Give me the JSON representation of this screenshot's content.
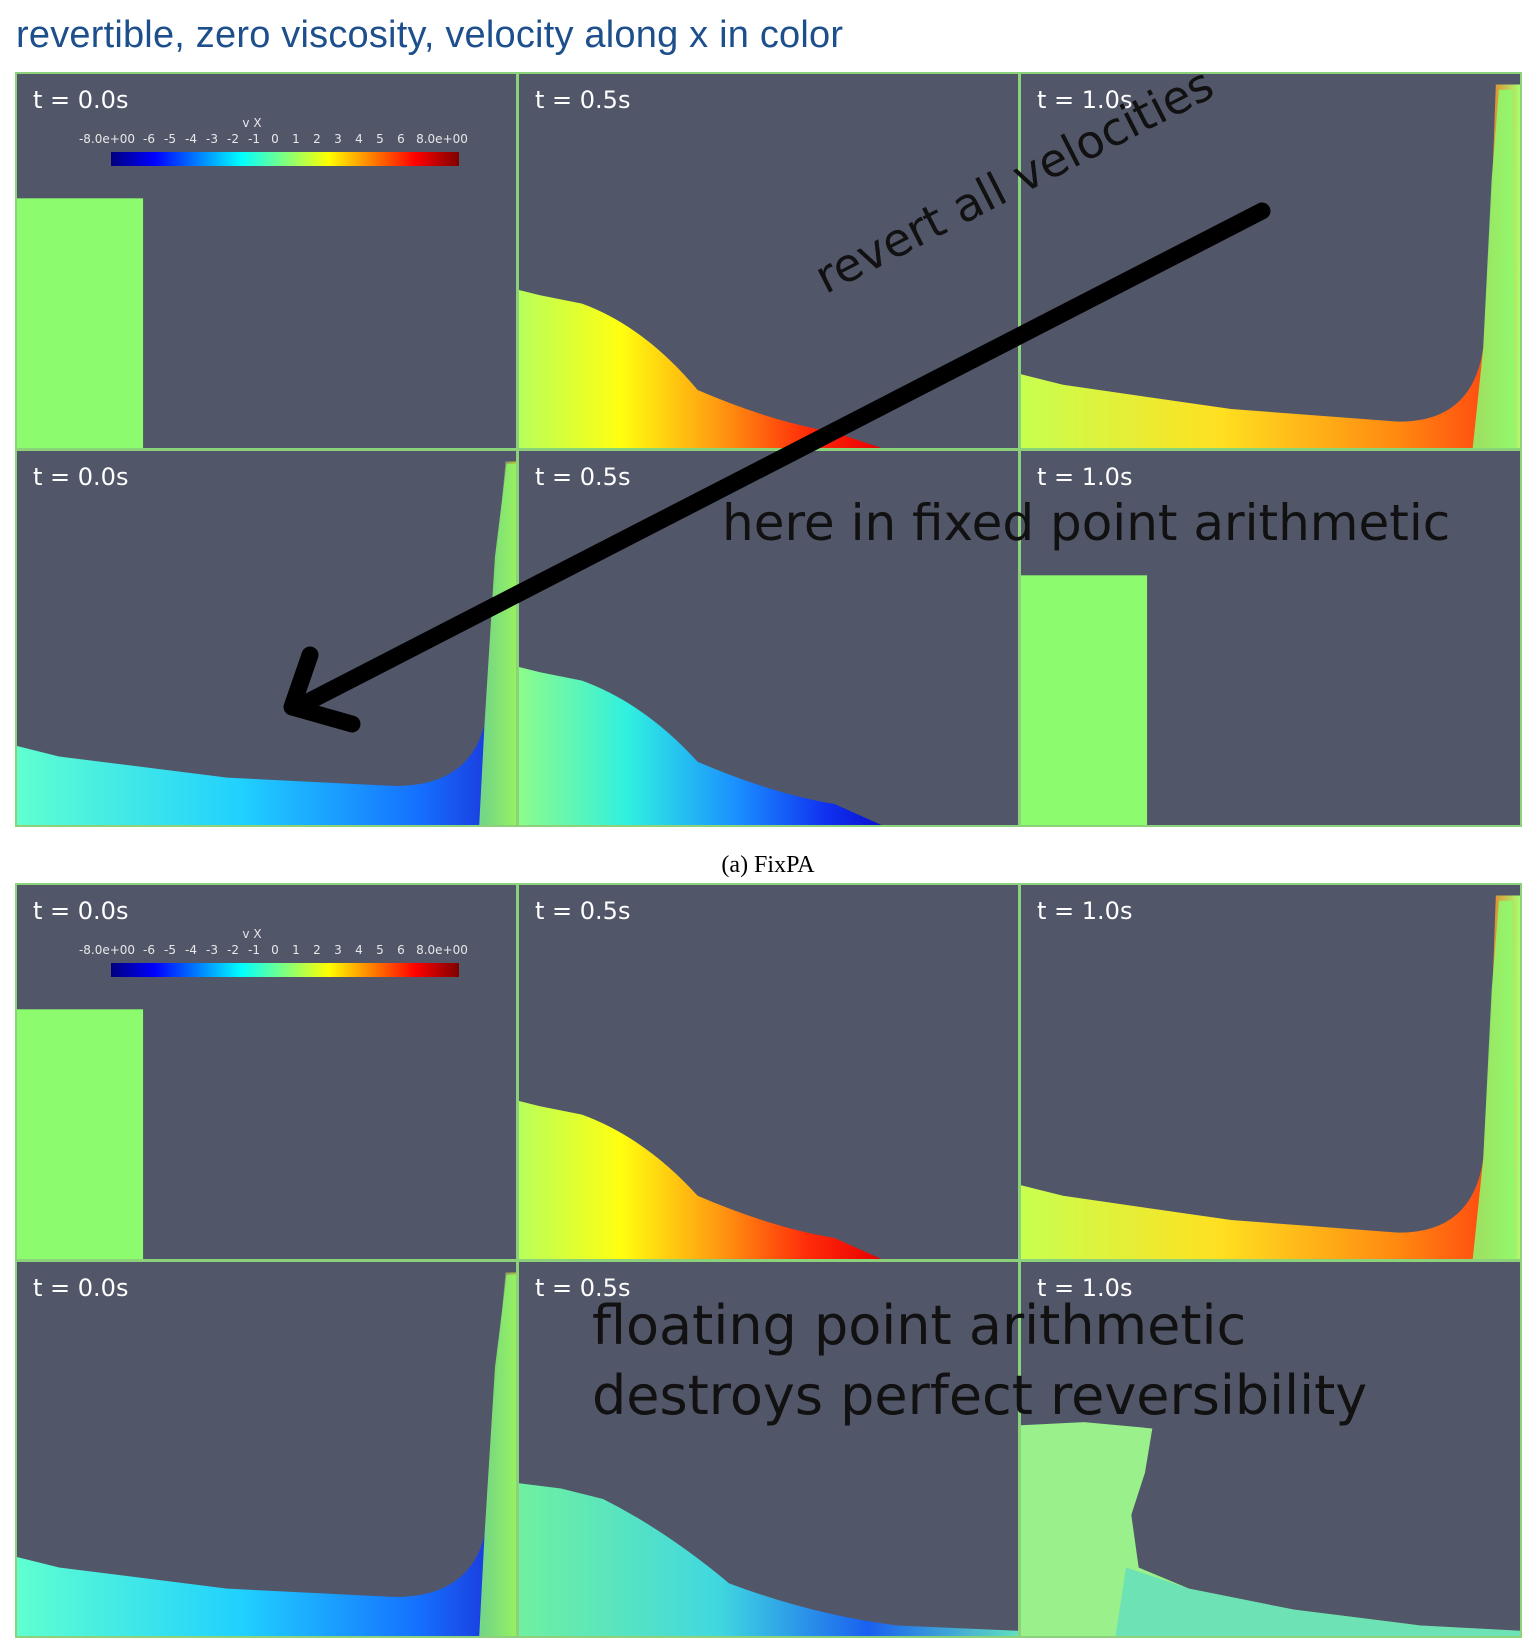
{
  "title": "revertible, zero viscosity, velocity along x in color",
  "colorbar": {
    "title": "v X",
    "min_label": "-8.0e+00",
    "max_label": "8.0e+00",
    "ticks": [
      "-6",
      "-5",
      "-4",
      "-3",
      "-2",
      "-1",
      "0",
      "1",
      "2",
      "3",
      "4",
      "5",
      "6"
    ]
  },
  "figure_a": {
    "caption": "(a) FixPA",
    "top_row": [
      "t = 0.0s",
      "t = 0.5s",
      "t = 1.0s"
    ],
    "bottom_row": [
      "t = 0.0s",
      "t = 0.5s",
      "t = 1.0s"
    ]
  },
  "figure_b": {
    "top_row": [
      "t = 0.0s",
      "t = 0.5s",
      "t = 1.0s"
    ],
    "bottom_row": [
      "t = 0.0s",
      "t = 0.5s",
      "t = 1.0s"
    ]
  },
  "annotations": {
    "arrow_label": "revert all velocities",
    "fixed_note": "here in fixed point arithmetic",
    "float_note_line1": "floating point arithmetic",
    "float_note_line2": "destroys perfect reversibility"
  },
  "colors": {
    "background_panel": "#525669",
    "fluid_rest": "#8cfc6e",
    "title": "#1d4f8c"
  }
}
